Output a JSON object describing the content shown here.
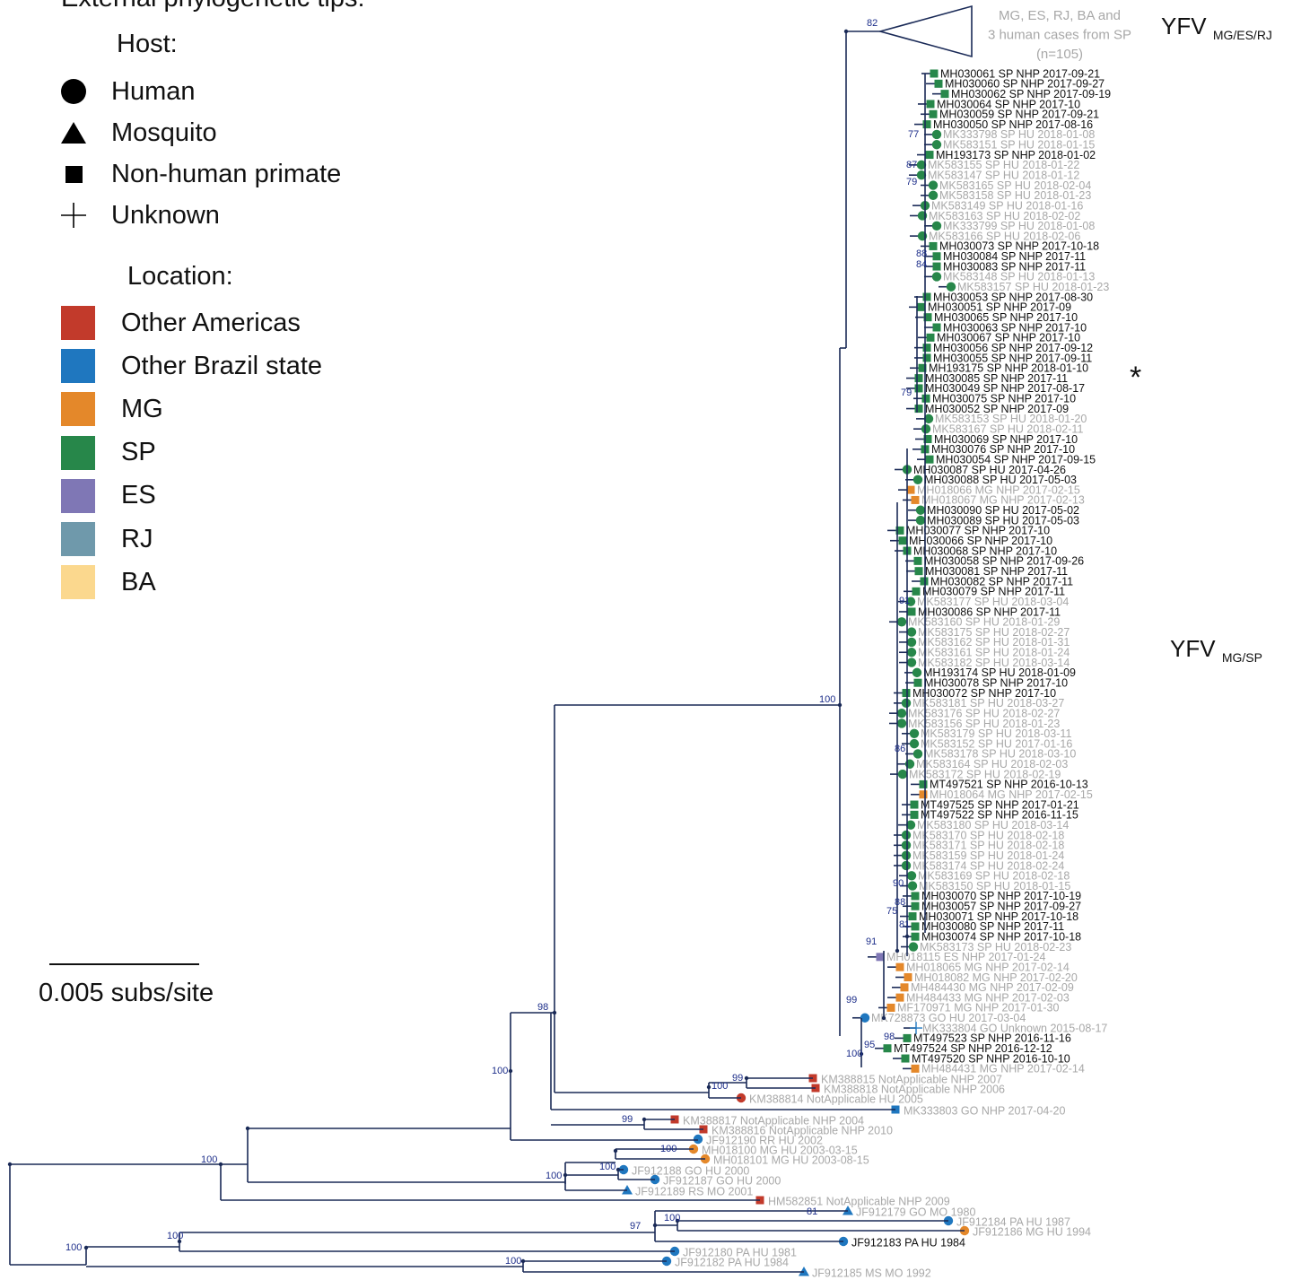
{
  "legend": {
    "header": "External phylogenetic tips:",
    "host_title": "Host:",
    "hosts": [
      {
        "label": "Human",
        "icon": "circle-icon"
      },
      {
        "label": "Mosquito",
        "icon": "triangle-icon"
      },
      {
        "label": "Non-human primate",
        "icon": "square-icon"
      },
      {
        "label": "Unknown",
        "icon": "cross-icon"
      }
    ],
    "location_title": "Location:",
    "locations": [
      {
        "label": "Other Americas",
        "color": "#c23a2b"
      },
      {
        "label": "Other Brazil state",
        "color": "#1f77bf"
      },
      {
        "label": "MG",
        "color": "#e4882a"
      },
      {
        "label": "SP",
        "color": "#27874a"
      },
      {
        "label": "ES",
        "color": "#7f77b5"
      },
      {
        "label": "RJ",
        "color": "#6f99ab"
      },
      {
        "label": "BA",
        "color": "#fbd88e"
      }
    ]
  },
  "scale": {
    "label": "0.005 subs/site"
  },
  "clades": {
    "top_main": "YFV",
    "top_sub": "MG/ES/RJ",
    "top_desc": [
      "MG, ES, RJ, BA and",
      "3 human cases from SP",
      "(n=105)"
    ],
    "top_support": "82",
    "mid_main": "YFV",
    "mid_sub": "MG/SP",
    "star": "*"
  },
  "sp_tips": [
    [
      "MH030061 SP NHP 2017-09-21",
      "b",
      "s",
      "SP"
    ],
    [
      "MH030060 SP NHP 2017-09-27",
      "b",
      "s",
      "SP"
    ],
    [
      "MH030062 SP NHP 2017-09-19",
      "b",
      "s",
      "SP"
    ],
    [
      "MH030064 SP NHP 2017-10",
      "b",
      "s",
      "SP"
    ],
    [
      "MH030059 SP NHP 2017-09-21",
      "b",
      "s",
      "SP"
    ],
    [
      "MH030050 SP NHP 2017-08-16",
      "b",
      "s",
      "SP"
    ],
    [
      "MK333798 SP HU 2018-01-08",
      "g",
      "c",
      "SP"
    ],
    [
      "MK583151 SP HU 2018-01-15",
      "g",
      "c",
      "SP"
    ],
    [
      "MH193173 SP NHP 2018-01-02",
      "b",
      "s",
      "SP"
    ],
    [
      "MK583155 SP HU 2018-01-22",
      "g",
      "c",
      "SP"
    ],
    [
      "MK583147 SP HU 2018-01-12",
      "g",
      "c",
      "SP"
    ],
    [
      "MK583165 SP HU 2018-02-04",
      "g",
      "c",
      "SP"
    ],
    [
      "MK583158 SP HU 2018-01-23",
      "g",
      "c",
      "SP"
    ],
    [
      "MK583149 SP HU 2018-01-16",
      "g",
      "c",
      "SP"
    ],
    [
      "MK583163 SP HU 2018-02-02",
      "g",
      "c",
      "SP"
    ],
    [
      "MK333799 SP HU 2018-01-08",
      "g",
      "c",
      "SP"
    ],
    [
      "MK583166 SP HU 2018-02-06",
      "g",
      "c",
      "SP"
    ],
    [
      "MH030073 SP NHP 2017-10-18",
      "b",
      "s",
      "SP"
    ],
    [
      "MH030084 SP NHP 2017-11",
      "b",
      "s",
      "SP"
    ],
    [
      "MH030083 SP NHP 2017-11",
      "b",
      "s",
      "SP"
    ],
    [
      "MK583148 SP HU 2018-01-13",
      "g",
      "c",
      "SP"
    ],
    [
      "MK583157 SP HU 2018-01-23",
      "g",
      "c",
      "SP"
    ],
    [
      "MH030053 SP NHP 2017-08-30",
      "b",
      "s",
      "SP"
    ],
    [
      "MH030051 SP NHP 2017-09",
      "b",
      "s",
      "SP"
    ],
    [
      "MH030065 SP NHP 2017-10",
      "b",
      "s",
      "SP"
    ],
    [
      "MH030063 SP NHP 2017-10",
      "b",
      "s",
      "SP"
    ],
    [
      "MH030067 SP NHP 2017-10",
      "b",
      "s",
      "SP"
    ],
    [
      "MH030056 SP NHP 2017-09-12",
      "b",
      "s",
      "SP"
    ],
    [
      "MH030055 SP NHP 2017-09-11",
      "b",
      "s",
      "SP"
    ],
    [
      "MH193175 SP NHP 2018-01-10",
      "b",
      "s",
      "SP"
    ],
    [
      "MH030085 SP NHP 2017-11",
      "b",
      "s",
      "SP"
    ],
    [
      "MH030049 SP NHP 2017-08-17",
      "b",
      "s",
      "SP"
    ],
    [
      "MH030075 SP NHP 2017-10",
      "b",
      "s",
      "SP"
    ],
    [
      "MH030052 SP NHP 2017-09",
      "b",
      "s",
      "SP"
    ],
    [
      "MK583153 SP HU 2018-01-20",
      "g",
      "c",
      "SP"
    ],
    [
      "MK583167 SP HU 2018-02-11",
      "g",
      "c",
      "SP"
    ],
    [
      "MH030069 SP NHP 2017-10",
      "b",
      "s",
      "SP"
    ],
    [
      "MH030076 SP NHP 2017-10",
      "b",
      "s",
      "SP"
    ],
    [
      "MH030054 SP NHP 2017-09-15",
      "b",
      "s",
      "SP"
    ],
    [
      "MH030087 SP HU 2017-04-26",
      "b",
      "c",
      "SP"
    ],
    [
      "MH030088 SP HU 2017-05-03",
      "b",
      "c",
      "SP"
    ],
    [
      "MH018066 MG NHP 2017-02-15",
      "g",
      "s",
      "MG"
    ],
    [
      "MH018067 MG NHP 2017-02-13",
      "g",
      "s",
      "MG"
    ],
    [
      "MH030090 SP HU 2017-05-02",
      "b",
      "c",
      "SP"
    ],
    [
      "MH030089 SP HU 2017-05-03",
      "b",
      "c",
      "SP"
    ],
    [
      "MH030077 SP NHP 2017-10",
      "b",
      "s",
      "SP"
    ],
    [
      "MH030066 SP NHP 2017-10",
      "b",
      "s",
      "SP"
    ],
    [
      "MH030068 SP NHP 2017-10",
      "b",
      "s",
      "SP"
    ],
    [
      "MH030058 SP NHP 2017-09-26",
      "b",
      "s",
      "SP"
    ],
    [
      "MH030081 SP NHP 2017-11",
      "b",
      "s",
      "SP"
    ],
    [
      "MH030082 SP NHP 2017-11",
      "b",
      "s",
      "SP"
    ],
    [
      "MH030079 SP NHP 2017-11",
      "b",
      "s",
      "SP"
    ],
    [
      "MK583177 SP HU 2018-03-04",
      "g",
      "c",
      "SP"
    ],
    [
      "MH030086 SP NHP 2017-11",
      "b",
      "s",
      "SP"
    ],
    [
      "MK583160 SP HU 2018-01-29",
      "g",
      "c",
      "SP"
    ],
    [
      "MK583175 SP HU 2018-02-27",
      "g",
      "c",
      "SP"
    ],
    [
      "MK583162 SP HU 2018-01-31",
      "g",
      "c",
      "SP"
    ],
    [
      "MK583161 SP HU 2018-01-24",
      "g",
      "c",
      "SP"
    ],
    [
      "MK583182 SP HU 2018-03-14",
      "g",
      "c",
      "SP"
    ],
    [
      "MH193174 SP HU 2018-01-09",
      "b",
      "c",
      "SP"
    ],
    [
      "MH030078 SP NHP 2017-10",
      "b",
      "s",
      "SP"
    ],
    [
      "MH030072 SP NHP 2017-10",
      "b",
      "s",
      "SP"
    ],
    [
      "MK583181 SP HU 2018-03-27",
      "g",
      "c",
      "SP"
    ],
    [
      "MK583176 SP HU 2018-02-27",
      "g",
      "c",
      "SP"
    ],
    [
      "MK583156 SP HU 2018-01-23",
      "g",
      "c",
      "SP"
    ],
    [
      "MK583179 SP HU 2018-03-11",
      "g",
      "c",
      "SP"
    ],
    [
      "MK583152 SP HU 2017-01-16",
      "g",
      "c",
      "SP"
    ],
    [
      "MK583178 SP HU 2018-03-10",
      "g",
      "c",
      "SP"
    ],
    [
      "MK583164 SP HU 2018-02-03",
      "g",
      "c",
      "SP"
    ],
    [
      "MK583172 SP HU 2018-02-19",
      "g",
      "c",
      "SP"
    ],
    [
      "MT497521 SP NHP 2016-10-13",
      "b",
      "s",
      "SP"
    ],
    [
      "MH018064 MG NHP 2017-02-15",
      "g",
      "s",
      "MG"
    ],
    [
      "MT497525 SP NHP 2017-01-21",
      "b",
      "s",
      "SP"
    ],
    [
      "MT497522 SP NHP 2016-11-15",
      "b",
      "s",
      "SP"
    ],
    [
      "MK583180 SP HU 2018-03-14",
      "g",
      "c",
      "SP"
    ],
    [
      "MK583170 SP HU 2018-02-18",
      "g",
      "c",
      "SP"
    ],
    [
      "MK583171 SP HU 2018-02-18",
      "g",
      "c",
      "SP"
    ],
    [
      "MK583159 SP HU 2018-01-24",
      "g",
      "c",
      "SP"
    ],
    [
      "MK583174 SP HU 2018-02-24",
      "g",
      "c",
      "SP"
    ],
    [
      "MK583169 SP HU 2018-02-18",
      "g",
      "c",
      "SP"
    ],
    [
      "MK583150 SP HU 2018-01-15",
      "g",
      "c",
      "SP"
    ],
    [
      "MH030070 SP NHP 2017-10-19",
      "b",
      "s",
      "SP"
    ],
    [
      "MH030057 SP NHP 2017-09-27",
      "b",
      "s",
      "SP"
    ],
    [
      "MH030071 SP NHP 2017-10-18",
      "b",
      "s",
      "SP"
    ],
    [
      "MH030080 SP NHP 2017-11",
      "b",
      "s",
      "SP"
    ],
    [
      "MH030074 SP NHP 2017-10-18",
      "b",
      "s",
      "SP"
    ],
    [
      "MK583173 SP HU 2018-02-23",
      "g",
      "c",
      "SP"
    ],
    [
      "MH018115 ES NHP 2017-01-24",
      "g",
      "s",
      "ES"
    ],
    [
      "MH018065 MG NHP 2017-02-14",
      "g",
      "s",
      "MG"
    ],
    [
      "MH018082 MG NHP 2017-02-20",
      "g",
      "s",
      "MG"
    ],
    [
      "MH484430 MG NHP 2017-02-09",
      "g",
      "s",
      "MG"
    ],
    [
      "MH484433 MG NHP 2017-02-03",
      "g",
      "s",
      "MG"
    ],
    [
      "MF170971 MG NHP 2017-01-30",
      "g",
      "s",
      "MG"
    ],
    [
      "MK728873 GO HU 2017-03-04",
      "g",
      "c",
      "BR"
    ],
    [
      "MK333804 GO Unknown 2015-08-17",
      "g",
      "x",
      "BR"
    ],
    [
      "MT497523 SP NHP 2016-11-16",
      "b",
      "s",
      "SP"
    ],
    [
      "MT497524 SP NHP 2016-12-12",
      "b",
      "s",
      "SP"
    ],
    [
      "MT497520 SP NHP 2016-10-10",
      "b",
      "s",
      "SP"
    ],
    [
      "MH484431 MG NHP 2017-02-14",
      "g",
      "s",
      "MG"
    ]
  ],
  "outer_tips": [
    [
      "KM388815 NotApplicable NHP 2007",
      "g",
      "s",
      "AM"
    ],
    [
      "KM388818 NotApplicable NHP 2006",
      "g",
      "s",
      "AM"
    ],
    [
      "KM388814 NotApplicable HU 2005",
      "g",
      "c",
      "AM"
    ],
    [
      "MK333803 GO NHP 2017-04-20",
      "g",
      "s",
      "BR"
    ],
    [
      "KM388817 NotApplicable NHP 2004",
      "g",
      "s",
      "AM"
    ],
    [
      "KM388816 NotApplicable NHP 2010",
      "g",
      "s",
      "AM"
    ],
    [
      "JF912190 RR HU 2002",
      "g",
      "c",
      "BR"
    ],
    [
      "MH018100 MG HU 2003-03-15",
      "g",
      "c",
      "MG"
    ],
    [
      "MH018101 MG HU 2003-08-15",
      "g",
      "c",
      "MG"
    ],
    [
      "JF912188 GO HU 2000",
      "g",
      "c",
      "BR"
    ],
    [
      "JF912187 GO HU 2000",
      "g",
      "c",
      "BR"
    ],
    [
      "JF912189 RS MO 2001",
      "g",
      "t",
      "BR"
    ],
    [
      "HM582851 NotApplicable NHP 2009",
      "g",
      "s",
      "AM"
    ],
    [
      "JF912179 GO MO 1980",
      "g",
      "t",
      "BR"
    ],
    [
      "JF912184 PA HU 1987",
      "g",
      "c",
      "BR"
    ],
    [
      "JF912186 MG HU 1994",
      "g",
      "c",
      "MG"
    ],
    [
      "JF912183 PA HU 1984",
      "b",
      "c",
      "BR"
    ],
    [
      "JF912180 PA HU 1981",
      "g",
      "c",
      "BR"
    ],
    [
      "JF912182 PA HU 1984",
      "g",
      "c",
      "BR"
    ],
    [
      "JF912185 MS MO 1992",
      "g",
      "t",
      "BR"
    ]
  ],
  "supports": [
    "100",
    "100",
    "100",
    "100",
    "100",
    "98",
    "100",
    "99",
    "100",
    "100",
    "100",
    "97",
    "100",
    "100",
    "81",
    "99",
    "99",
    "100",
    "95",
    "98",
    "91",
    "77",
    "87",
    "79",
    "88",
    "84",
    "79",
    "91",
    "86",
    "90",
    "88",
    "75",
    "81"
  ]
}
